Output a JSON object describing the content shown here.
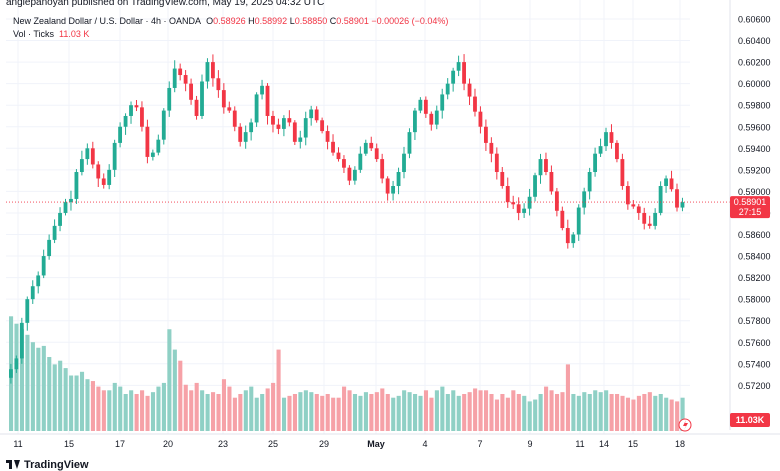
{
  "publisher": "anglepanoyan published on TradingView.com, May 19, 2025 04:32 UTC",
  "legend": {
    "symbol": "New Zealand Dollar / U.S. Dollar · 4h · OANDA",
    "o_label": "O",
    "o": "0.58926",
    "h_label": "H",
    "h": "0.58992",
    "l_label": "L",
    "l": "0.58850",
    "c_label": "C",
    "c": "0.58901",
    "change": "−0.00026 (−0.04%)",
    "vol_label": "Vol · Ticks",
    "vol_value": "11.03 K"
  },
  "footer": {
    "logo_text": "TradingView"
  },
  "colors": {
    "up": "#22ab94",
    "down": "#f23645",
    "vol_up": "#8fd0c5",
    "vol_down": "#f6a1a7",
    "price_line": "#f23645"
  },
  "chart_data": {
    "type": "candlestick",
    "price_axis": {
      "ticks": [
        "0.60600",
        "0.60400",
        "0.60200",
        "0.60000",
        "0.59800",
        "0.59600",
        "0.59400",
        "0.59200",
        "0.59000",
        "0.58800",
        "0.58600",
        "0.58400",
        "0.58200",
        "0.58000",
        "0.57800",
        "0.57600",
        "0.57400",
        "0.57200"
      ],
      "range": [
        0.5709,
        0.6071
      ]
    },
    "last_price": "0.58901",
    "countdown": "27:15",
    "volume_badge": "11.03K",
    "x_ticks": [
      "11",
      "15",
      "17",
      "20",
      "23",
      "25",
      "29",
      "May",
      "4",
      "7",
      "9",
      "11",
      "14",
      "15",
      "18"
    ],
    "close_path": [
      0.5735,
      0.5745,
      0.5778,
      0.58,
      0.5812,
      0.5822,
      0.584,
      0.5855,
      0.5868,
      0.588,
      0.589,
      0.5893,
      0.5918,
      0.593,
      0.594,
      0.5925,
      0.5912,
      0.5906,
      0.592,
      0.5945,
      0.596,
      0.597,
      0.598,
      0.5978,
      0.596,
      0.5932,
      0.5936,
      0.5948,
      0.5975,
      0.5996,
      0.6014,
      0.6008,
      0.6,
      0.5985,
      0.597,
      0.6002,
      0.602,
      0.6005,
      0.5994,
      0.5978,
      0.5975,
      0.596,
      0.5946,
      0.5955,
      0.5964,
      0.599,
      0.5998,
      0.597,
      0.5962,
      0.5958,
      0.5968,
      0.5964,
      0.5946,
      0.595,
      0.5968,
      0.5976,
      0.5966,
      0.5956,
      0.5946,
      0.5936,
      0.593,
      0.5922,
      0.591,
      0.592,
      0.5935,
      0.5945,
      0.594,
      0.593,
      0.5912,
      0.5898,
      0.5905,
      0.5918,
      0.5935,
      0.5955,
      0.5975,
      0.5985,
      0.5972,
      0.5962,
      0.5975,
      0.599,
      0.6,
      0.6012,
      0.602,
      0.6,
      0.5988,
      0.5974,
      0.596,
      0.5945,
      0.5935,
      0.5918,
      0.5905,
      0.589,
      0.5888,
      0.588,
      0.5884,
      0.5895,
      0.5915,
      0.593,
      0.5918,
      0.59,
      0.5882,
      0.5866,
      0.5852,
      0.586,
      0.5885,
      0.59,
      0.5918,
      0.5935,
      0.5942,
      0.5955,
      0.5945,
      0.593,
      0.5905,
      0.5888,
      0.5886,
      0.588,
      0.587,
      0.5868,
      0.588,
      0.5905,
      0.5912,
      0.5902,
      0.5885,
      0.589
    ],
    "volume_path": [
      62,
      58,
      55,
      52,
      48,
      45,
      46,
      40,
      36,
      38,
      34,
      30,
      30,
      32,
      28,
      27,
      24,
      22,
      22,
      26,
      24,
      20,
      22,
      20,
      22,
      19,
      21,
      24,
      26,
      55,
      44,
      38,
      25,
      22,
      26,
      22,
      20,
      21,
      20,
      28,
      24,
      18,
      20,
      22,
      24,
      18,
      20,
      23,
      26,
      44,
      18,
      19,
      20,
      21,
      22,
      21,
      20,
      19,
      20,
      18,
      18,
      24,
      22,
      20,
      19,
      21,
      20,
      21,
      23,
      20,
      18,
      19,
      22,
      21,
      20,
      19,
      22,
      18,
      22,
      24,
      20,
      22,
      19,
      20,
      21,
      23,
      22,
      22,
      20,
      17,
      20,
      18,
      22,
      20,
      19,
      16,
      17,
      20,
      24,
      22,
      20,
      21,
      36,
      20,
      19,
      21,
      20,
      22,
      21,
      22,
      20,
      20,
      19,
      18,
      17,
      19,
      20,
      21,
      19,
      20,
      18,
      17,
      16,
      18
    ]
  }
}
